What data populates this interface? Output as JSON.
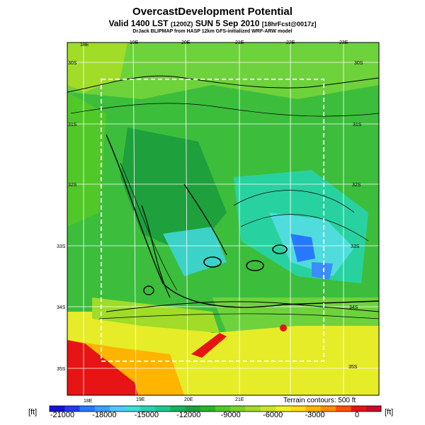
{
  "header": {
    "title": "OvercastDevelopment Potential",
    "subtitle_main": "Valid 1400 LST",
    "subtitle_utc": "(1200Z)",
    "subtitle_date": "SUN 5 Sep 2010",
    "subtitle_fcst": "[18hrFcst@0017z]",
    "subtitle2": "DrJack BLIPMAP from HASP 12km GFS-initialized WRF-ARW model"
  },
  "map": {
    "top_lon_labels": [
      "18E",
      "19E",
      "20E",
      "21E",
      "22E",
      "23E"
    ],
    "bottom_lon_labels": [
      "18E",
      "19E",
      "20E",
      "21E"
    ],
    "left_lat_labels": [
      "30S",
      "31S",
      "32S",
      "33S",
      "34S",
      "35S"
    ],
    "right_lat_labels": [
      "30S",
      "31S",
      "32S",
      "33S",
      "34S",
      "35S"
    ],
    "domain_box": "dashed white",
    "terrain_note": "Terrain contours: 500 ft"
  },
  "colorbar": {
    "unit_left": "[ft]",
    "unit_right": "[ft]",
    "tick_labels": [
      "-21000",
      "-18000",
      "-15000",
      "-12000",
      "-9000",
      "-6000",
      "-3000",
      "0"
    ],
    "colors": [
      "#1414d2",
      "#1e3cf0",
      "#2878ff",
      "#3ca0ff",
      "#50c8ff",
      "#3cdcdc",
      "#28d2b4",
      "#1ec88c",
      "#14b45a",
      "#1ea03c",
      "#28b428",
      "#50c828",
      "#78d228",
      "#a0dc28",
      "#c8e628",
      "#f0f028",
      "#ffdc14",
      "#ffb400",
      "#ff8c00",
      "#ff5000",
      "#e61414",
      "#c80a28"
    ]
  }
}
